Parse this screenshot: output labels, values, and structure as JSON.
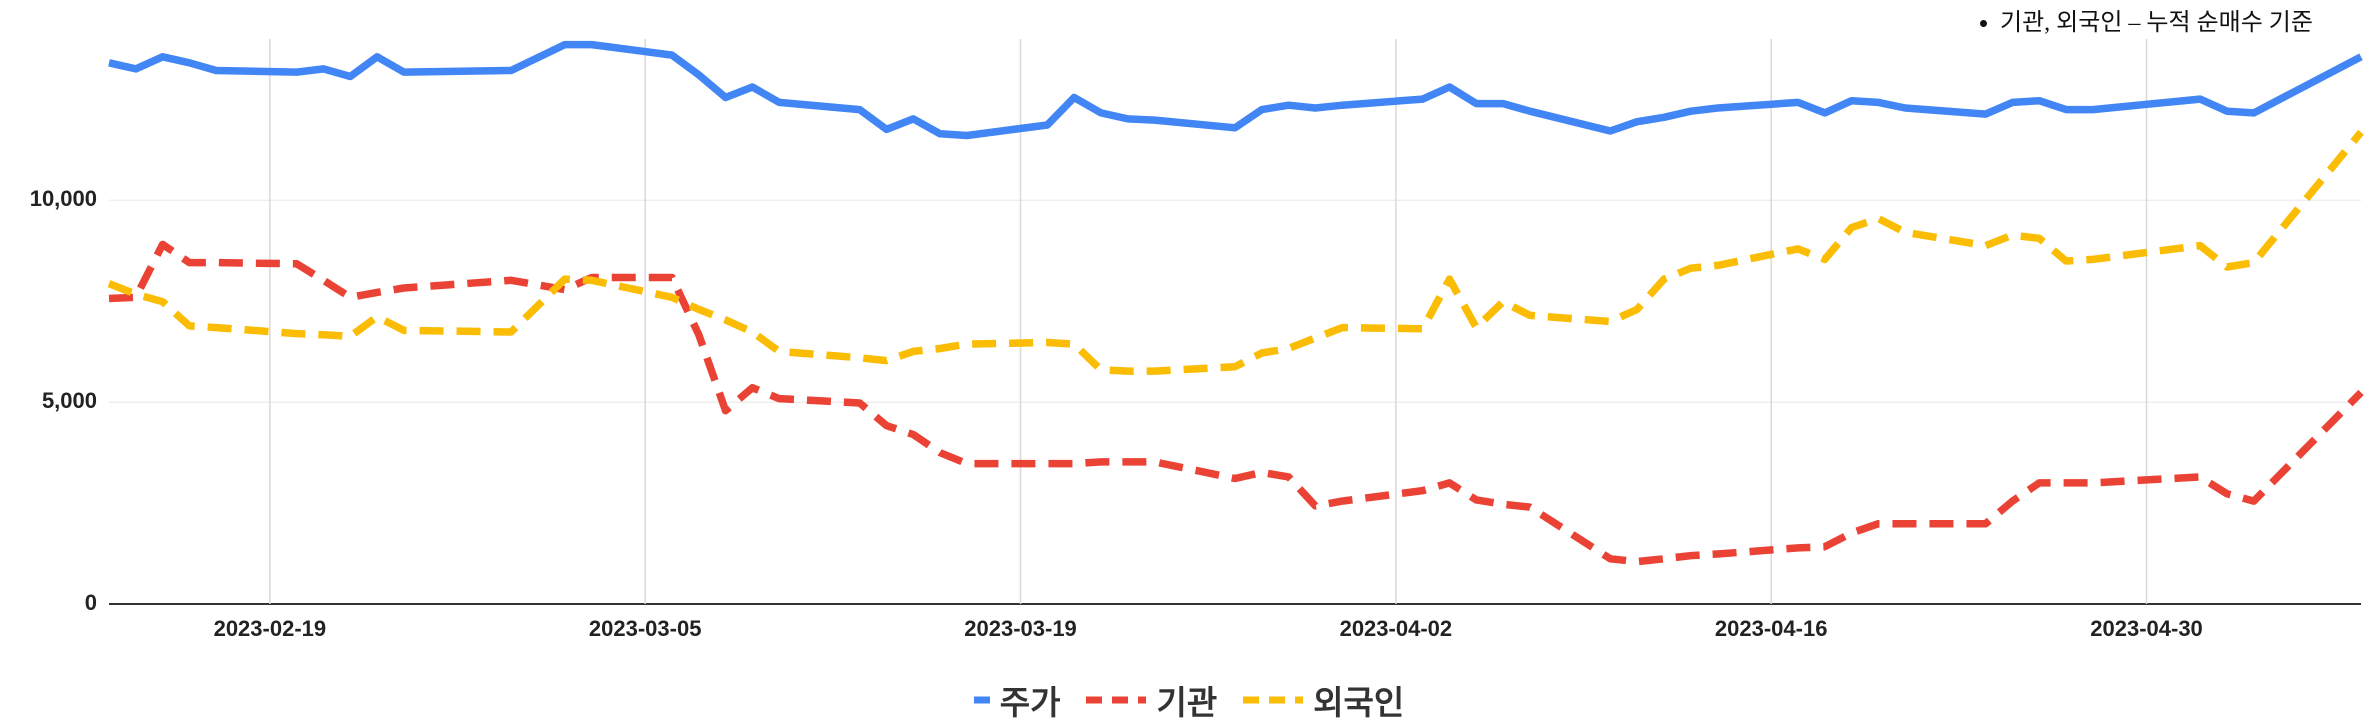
{
  "note": "기관, 외국인 – 누적 순매수 기준",
  "chart_data": {
    "type": "line",
    "x": [
      "2023-02-13",
      "2023-02-14",
      "2023-02-15",
      "2023-02-16",
      "2023-02-17",
      "2023-02-20",
      "2023-02-21",
      "2023-02-22",
      "2023-02-23",
      "2023-02-24",
      "2023-02-28",
      "2023-03-02",
      "2023-03-03",
      "2023-03-06",
      "2023-03-07",
      "2023-03-08",
      "2023-03-09",
      "2023-03-10",
      "2023-03-13",
      "2023-03-14",
      "2023-03-15",
      "2023-03-16",
      "2023-03-17",
      "2023-03-20",
      "2023-03-21",
      "2023-03-22",
      "2023-03-23",
      "2023-03-24",
      "2023-03-27",
      "2023-03-28",
      "2023-03-29",
      "2023-03-30",
      "2023-03-31",
      "2023-04-03",
      "2023-04-04",
      "2023-04-05",
      "2023-04-06",
      "2023-04-07",
      "2023-04-10",
      "2023-04-11",
      "2023-04-12",
      "2023-04-13",
      "2023-04-14",
      "2023-04-17",
      "2023-04-18",
      "2023-04-19",
      "2023-04-20",
      "2023-04-21",
      "2023-04-24",
      "2023-04-25",
      "2023-04-26",
      "2023-04-27",
      "2023-04-28",
      "2023-05-02",
      "2023-05-03",
      "2023-05-04",
      "2023-05-08"
    ],
    "series": [
      {
        "name": "주가",
        "color": "#4285f4",
        "dashed": false,
        "values": [
          13410,
          13260,
          13560,
          13410,
          13220,
          13180,
          13260,
          13070,
          13560,
          13180,
          13220,
          13860,
          13860,
          13600,
          13110,
          12550,
          12810,
          12430,
          12250,
          11760,
          12020,
          11650,
          11610,
          11870,
          12550,
          12170,
          12020,
          11990,
          11800,
          12250,
          12360,
          12290,
          12360,
          12510,
          12810,
          12400,
          12400,
          12210,
          11720,
          11950,
          12060,
          12210,
          12290,
          12430,
          12170,
          12470,
          12430,
          12290,
          12140,
          12430,
          12470,
          12250,
          12250,
          12510,
          12210,
          12170,
          13560
        ]
      },
      {
        "name": "기관",
        "color": "#ea4335",
        "dashed": true,
        "values": [
          7570,
          7600,
          8910,
          8460,
          8460,
          8430,
          8020,
          7600,
          7720,
          7830,
          8020,
          7790,
          8090,
          8090,
          6670,
          4790,
          5360,
          5090,
          4980,
          4420,
          4200,
          3750,
          3480,
          3480,
          3480,
          3520,
          3520,
          3520,
          3110,
          3260,
          3150,
          2430,
          2550,
          2810,
          3000,
          2580,
          2470,
          2400,
          1120,
          1050,
          1120,
          1200,
          1240,
          1390,
          1420,
          1760,
          1990,
          1990,
          1990,
          2550,
          3000,
          3000,
          3000,
          3150,
          2730,
          2550,
          5240
        ]
      },
      {
        "name": "외국인",
        "color": "#fbbc04",
        "dashed": true,
        "values": [
          7940,
          7680,
          7490,
          6890,
          6850,
          6700,
          6670,
          6630,
          7120,
          6780,
          6740,
          8050,
          8020,
          7600,
          7300,
          7040,
          6740,
          6260,
          6100,
          6030,
          6260,
          6330,
          6440,
          6480,
          6440,
          5800,
          5770,
          5770,
          5880,
          6220,
          6330,
          6590,
          6850,
          6820,
          8050,
          6850,
          7490,
          7150,
          7000,
          7300,
          8050,
          8320,
          8390,
          8800,
          8540,
          9330,
          9550,
          9210,
          8880,
          9140,
          9060,
          8500,
          8540,
          8880,
          8350,
          8460,
          11690
        ]
      }
    ],
    "xlim": [
      "2023-02-13",
      "2023-05-08"
    ],
    "xticks": [
      "2023-02-19",
      "2023-03-05",
      "2023-03-19",
      "2023-04-02",
      "2023-04-16",
      "2023-04-30"
    ],
    "ylim": [
      0,
      14000
    ],
    "yticks": [
      0,
      {
        "value": 5000,
        "label": "5,000"
      },
      {
        "value": 10000,
        "label": "10,000"
      }
    ],
    "grid": true,
    "legend": "bottom"
  }
}
